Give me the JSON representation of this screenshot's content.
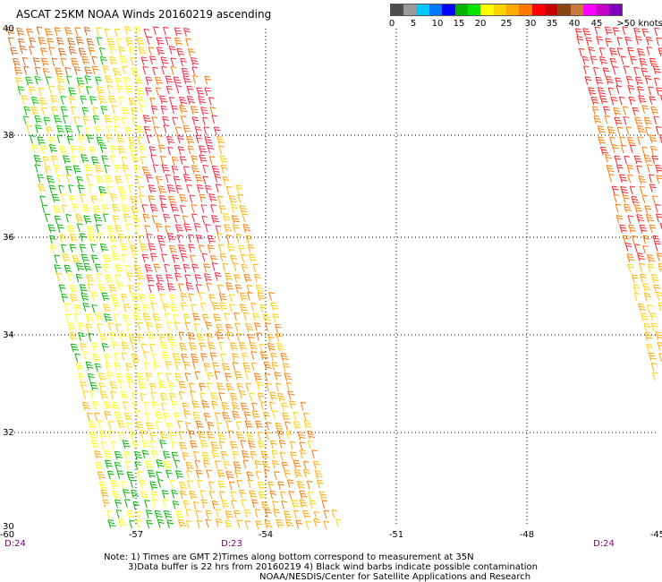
{
  "title": "ASCAT 25KM NOAA Winds 20160219 ascending",
  "legend": {
    "colors": [
      "#4d4d4d",
      "#9a9a9a",
      "#00c8ff",
      "#0078ff",
      "#0000ff",
      "#00b400",
      "#00e600",
      "#ffff00",
      "#ffd200",
      "#ffaa00",
      "#ff7800",
      "#ff0000",
      "#c80000",
      "#8b4513",
      "#c8783c",
      "#ff00ff",
      "#c800c8",
      "#8000c0"
    ],
    "labels": [
      "0",
      "5",
      "10",
      "15",
      "20",
      "25",
      "30",
      "35",
      "40",
      "45",
      ">50 knots"
    ]
  },
  "axes": {
    "lat_labels": [
      "40",
      "38",
      "36",
      "34",
      "32",
      "30"
    ],
    "lon_labels": [
      "-60",
      "-57",
      "-54",
      "-51",
      "-48",
      "-45"
    ]
  },
  "times": [
    "D:24",
    "D:23",
    "D:24"
  ],
  "notes": {
    "line1": "Note: 1) Times are GMT 2)Times along bottom correspond to measurement at 35N",
    "line2": "3)Data buffer is 22 hrs from 20160219 4) Black wind barbs indicate possible contamination",
    "line3": "NOAA/NESDIS/Center for Satellite Applications and Research"
  }
}
